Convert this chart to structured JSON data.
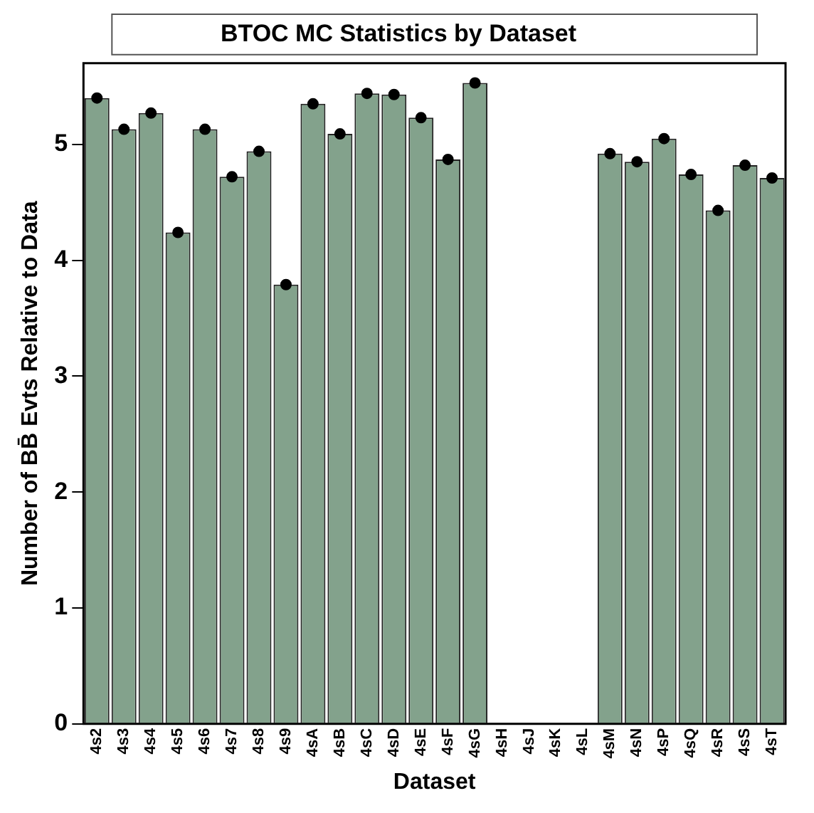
{
  "chart_data": {
    "type": "bar",
    "title": "BTOC MC Statistics by Dataset",
    "xlabel": "Dataset",
    "ylabel": "Number of BB̄ Evts Relative to Data",
    "categories": [
      "4s2",
      "4s3",
      "4s4",
      "4s5",
      "4s6",
      "4s7",
      "4s8",
      "4s9",
      "4sA",
      "4sB",
      "4sC",
      "4sD",
      "4sE",
      "4sF",
      "4sG",
      "4sH",
      "4sJ",
      "4sK",
      "4sL",
      "4sM",
      "4sN",
      "4sP",
      "4sQ",
      "4sR",
      "4sS",
      "4sT"
    ],
    "series": [
      {
        "type": "bar",
        "color": "#83a28c",
        "values": [
          5.4,
          5.13,
          5.27,
          4.24,
          5.13,
          4.72,
          4.94,
          3.79,
          5.35,
          5.09,
          5.44,
          5.43,
          5.23,
          4.87,
          5.53,
          null,
          null,
          null,
          null,
          4.92,
          4.85,
          5.05,
          4.74,
          4.43,
          4.82,
          4.71
        ]
      },
      {
        "type": "scatter",
        "color": "#000000",
        "marker": "circle",
        "values": [
          5.4,
          5.13,
          5.27,
          4.24,
          5.13,
          4.72,
          4.94,
          3.79,
          5.35,
          5.09,
          5.44,
          5.43,
          5.23,
          4.87,
          5.53,
          null,
          null,
          null,
          null,
          4.92,
          4.85,
          5.05,
          4.74,
          4.43,
          4.82,
          4.71
        ]
      }
    ],
    "ylim": [
      0,
      5.7
    ],
    "yticks": [
      0,
      1,
      2,
      3,
      4,
      5
    ],
    "grid": false,
    "legend": false
  }
}
